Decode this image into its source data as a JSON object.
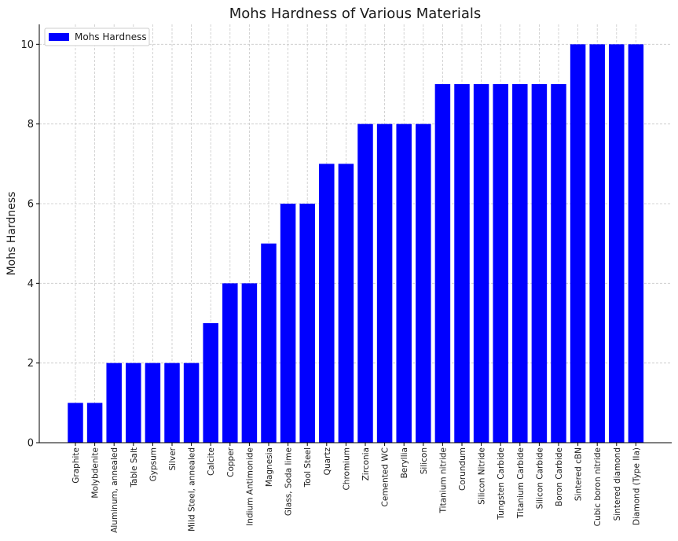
{
  "chart_data": {
    "type": "bar",
    "title": "Mohs Hardness of Various Materials",
    "xlabel": "",
    "ylabel": "Mohs Hardness",
    "ylim": [
      0,
      10.5
    ],
    "yticks": [
      0,
      2,
      4,
      6,
      8,
      10
    ],
    "grid": true,
    "legend_position": "top-left",
    "colors": {
      "bar": "#0000ff",
      "grid": "#c8c8c8",
      "axis": "#000000"
    },
    "categories": [
      "Graphite",
      "Molybdenite",
      "Aluminum, annealed",
      "Table Salt",
      "Gypsum",
      "Silver",
      "Mild Steel, annealed",
      "Calcite",
      "Copper",
      "Indium Antimonide",
      "Magnesia",
      "Glass, Soda lime",
      "Tool Steel",
      "Quartz",
      "Chromium",
      "Zirconia",
      "Cemented WC",
      "Beryllia",
      "Silicon",
      "Titanium nitride",
      "Corundum",
      "Silicon Nitride",
      "Tungsten Carbide",
      "Titanium Carbide",
      "Silicon Carbide",
      "Boron Carbide",
      "Sintered cBN",
      "Cubic boron nitride",
      "Sintered diamond",
      "Diamond (Type IIa)"
    ],
    "series": [
      {
        "name": "Mohs Hardness",
        "values": [
          1,
          1,
          2,
          2,
          2,
          2,
          2,
          3,
          4,
          4,
          5,
          6,
          6,
          7,
          7,
          8,
          8,
          8,
          8,
          9,
          9,
          9,
          9,
          9,
          9,
          9,
          10,
          10,
          10,
          10
        ]
      }
    ]
  }
}
